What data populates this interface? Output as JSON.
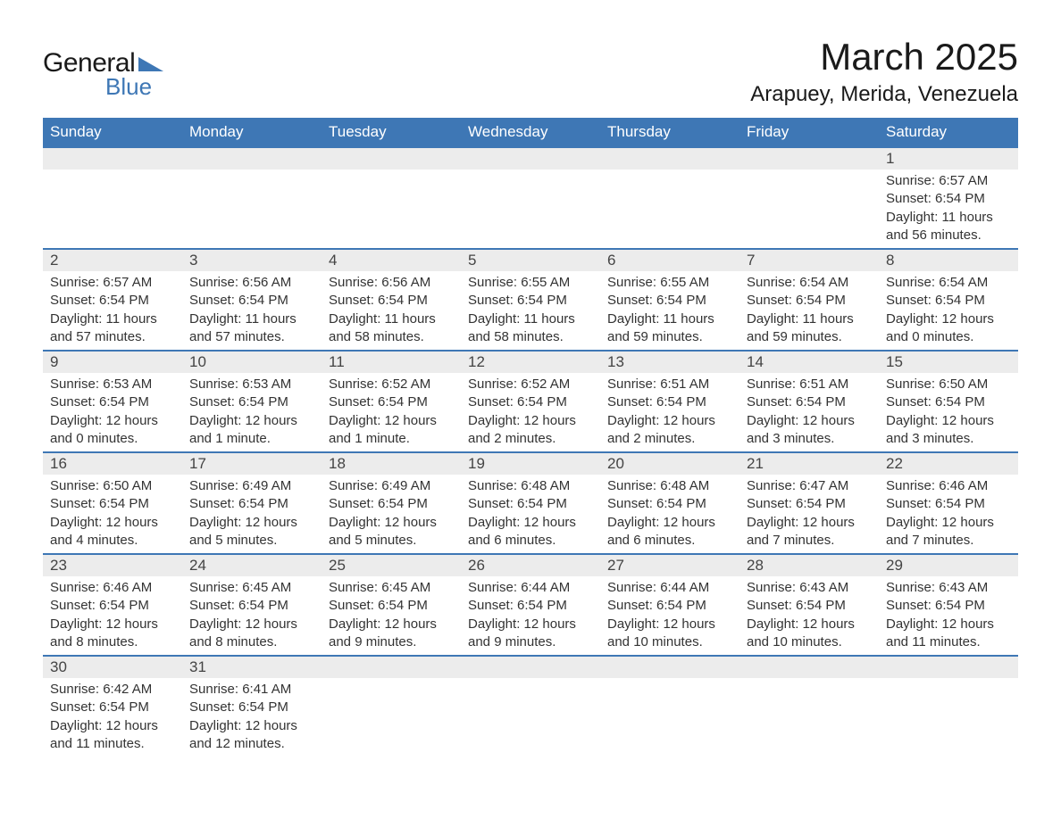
{
  "logo": {
    "text1": "General",
    "text2": "Blue",
    "triangle_color": "#3e77b5"
  },
  "title": "March 2025",
  "location": "Arapuey, Merida, Venezuela",
  "colors": {
    "header_bg": "#3e77b5",
    "header_text": "#ffffff",
    "daynum_bg": "#ececec",
    "border": "#3e77b5",
    "body_text": "#333333"
  },
  "day_headers": [
    "Sunday",
    "Monday",
    "Tuesday",
    "Wednesday",
    "Thursday",
    "Friday",
    "Saturday"
  ],
  "weeks": [
    [
      null,
      null,
      null,
      null,
      null,
      null,
      {
        "n": "1",
        "sr": "Sunrise: 6:57 AM",
        "ss": "Sunset: 6:54 PM",
        "dl": "Daylight: 11 hours and 56 minutes."
      }
    ],
    [
      {
        "n": "2",
        "sr": "Sunrise: 6:57 AM",
        "ss": "Sunset: 6:54 PM",
        "dl": "Daylight: 11 hours and 57 minutes."
      },
      {
        "n": "3",
        "sr": "Sunrise: 6:56 AM",
        "ss": "Sunset: 6:54 PM",
        "dl": "Daylight: 11 hours and 57 minutes."
      },
      {
        "n": "4",
        "sr": "Sunrise: 6:56 AM",
        "ss": "Sunset: 6:54 PM",
        "dl": "Daylight: 11 hours and 58 minutes."
      },
      {
        "n": "5",
        "sr": "Sunrise: 6:55 AM",
        "ss": "Sunset: 6:54 PM",
        "dl": "Daylight: 11 hours and 58 minutes."
      },
      {
        "n": "6",
        "sr": "Sunrise: 6:55 AM",
        "ss": "Sunset: 6:54 PM",
        "dl": "Daylight: 11 hours and 59 minutes."
      },
      {
        "n": "7",
        "sr": "Sunrise: 6:54 AM",
        "ss": "Sunset: 6:54 PM",
        "dl": "Daylight: 11 hours and 59 minutes."
      },
      {
        "n": "8",
        "sr": "Sunrise: 6:54 AM",
        "ss": "Sunset: 6:54 PM",
        "dl": "Daylight: 12 hours and 0 minutes."
      }
    ],
    [
      {
        "n": "9",
        "sr": "Sunrise: 6:53 AM",
        "ss": "Sunset: 6:54 PM",
        "dl": "Daylight: 12 hours and 0 minutes."
      },
      {
        "n": "10",
        "sr": "Sunrise: 6:53 AM",
        "ss": "Sunset: 6:54 PM",
        "dl": "Daylight: 12 hours and 1 minute."
      },
      {
        "n": "11",
        "sr": "Sunrise: 6:52 AM",
        "ss": "Sunset: 6:54 PM",
        "dl": "Daylight: 12 hours and 1 minute."
      },
      {
        "n": "12",
        "sr": "Sunrise: 6:52 AM",
        "ss": "Sunset: 6:54 PM",
        "dl": "Daylight: 12 hours and 2 minutes."
      },
      {
        "n": "13",
        "sr": "Sunrise: 6:51 AM",
        "ss": "Sunset: 6:54 PM",
        "dl": "Daylight: 12 hours and 2 minutes."
      },
      {
        "n": "14",
        "sr": "Sunrise: 6:51 AM",
        "ss": "Sunset: 6:54 PM",
        "dl": "Daylight: 12 hours and 3 minutes."
      },
      {
        "n": "15",
        "sr": "Sunrise: 6:50 AM",
        "ss": "Sunset: 6:54 PM",
        "dl": "Daylight: 12 hours and 3 minutes."
      }
    ],
    [
      {
        "n": "16",
        "sr": "Sunrise: 6:50 AM",
        "ss": "Sunset: 6:54 PM",
        "dl": "Daylight: 12 hours and 4 minutes."
      },
      {
        "n": "17",
        "sr": "Sunrise: 6:49 AM",
        "ss": "Sunset: 6:54 PM",
        "dl": "Daylight: 12 hours and 5 minutes."
      },
      {
        "n": "18",
        "sr": "Sunrise: 6:49 AM",
        "ss": "Sunset: 6:54 PM",
        "dl": "Daylight: 12 hours and 5 minutes."
      },
      {
        "n": "19",
        "sr": "Sunrise: 6:48 AM",
        "ss": "Sunset: 6:54 PM",
        "dl": "Daylight: 12 hours and 6 minutes."
      },
      {
        "n": "20",
        "sr": "Sunrise: 6:48 AM",
        "ss": "Sunset: 6:54 PM",
        "dl": "Daylight: 12 hours and 6 minutes."
      },
      {
        "n": "21",
        "sr": "Sunrise: 6:47 AM",
        "ss": "Sunset: 6:54 PM",
        "dl": "Daylight: 12 hours and 7 minutes."
      },
      {
        "n": "22",
        "sr": "Sunrise: 6:46 AM",
        "ss": "Sunset: 6:54 PM",
        "dl": "Daylight: 12 hours and 7 minutes."
      }
    ],
    [
      {
        "n": "23",
        "sr": "Sunrise: 6:46 AM",
        "ss": "Sunset: 6:54 PM",
        "dl": "Daylight: 12 hours and 8 minutes."
      },
      {
        "n": "24",
        "sr": "Sunrise: 6:45 AM",
        "ss": "Sunset: 6:54 PM",
        "dl": "Daylight: 12 hours and 8 minutes."
      },
      {
        "n": "25",
        "sr": "Sunrise: 6:45 AM",
        "ss": "Sunset: 6:54 PM",
        "dl": "Daylight: 12 hours and 9 minutes."
      },
      {
        "n": "26",
        "sr": "Sunrise: 6:44 AM",
        "ss": "Sunset: 6:54 PM",
        "dl": "Daylight: 12 hours and 9 minutes."
      },
      {
        "n": "27",
        "sr": "Sunrise: 6:44 AM",
        "ss": "Sunset: 6:54 PM",
        "dl": "Daylight: 12 hours and 10 minutes."
      },
      {
        "n": "28",
        "sr": "Sunrise: 6:43 AM",
        "ss": "Sunset: 6:54 PM",
        "dl": "Daylight: 12 hours and 10 minutes."
      },
      {
        "n": "29",
        "sr": "Sunrise: 6:43 AM",
        "ss": "Sunset: 6:54 PM",
        "dl": "Daylight: 12 hours and 11 minutes."
      }
    ],
    [
      {
        "n": "30",
        "sr": "Sunrise: 6:42 AM",
        "ss": "Sunset: 6:54 PM",
        "dl": "Daylight: 12 hours and 11 minutes."
      },
      {
        "n": "31",
        "sr": "Sunrise: 6:41 AM",
        "ss": "Sunset: 6:54 PM",
        "dl": "Daylight: 12 hours and 12 minutes."
      },
      null,
      null,
      null,
      null,
      null
    ]
  ]
}
